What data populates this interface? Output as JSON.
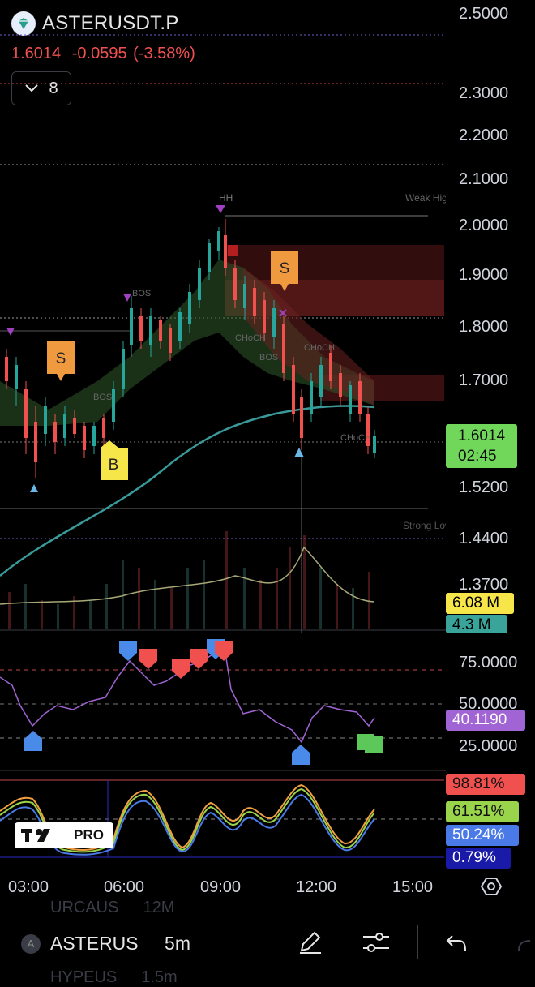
{
  "header": {
    "symbol": "ASTERUSDT.P",
    "last_price": "1.6014",
    "change": "-0.0595",
    "change_pct": "(-3.58%)",
    "indicator_count": "8"
  },
  "price_scale": [
    "2.5000",
    "2.3000",
    "2.2000",
    "2.1000",
    "2.0000",
    "1.9000",
    "1.8000",
    "1.7000",
    "1.5200",
    "1.4400",
    "1.3700"
  ],
  "price_badge": {
    "price": "1.6014",
    "countdown": "02:45"
  },
  "volume_badges": [
    "6.08 M",
    "4.3 M"
  ],
  "chart_labels": {
    "hh": "HH",
    "weak_high": "Weak High",
    "strong_low": "Strong Low",
    "bos": "BOS",
    "choch": "CHoCH",
    "buy": "B",
    "sell": "S"
  },
  "rsi": {
    "scale": [
      "75.0000",
      "50.0000",
      "25.0000"
    ],
    "badge": "40.1190"
  },
  "stoch": {
    "badges": [
      "98.81%",
      "61.51%",
      "50.24%",
      "0.79%"
    ]
  },
  "time_axis": [
    "03:00",
    "06:00",
    "09:00",
    "12:00",
    "15:00"
  ],
  "bottom_bar": {
    "rows": [
      {
        "symbol": "URCAUS",
        "value": "12M"
      },
      {
        "symbol": "ASTERUS",
        "value": "5m"
      },
      {
        "symbol": "HYPEUS",
        "value": "1.5m"
      }
    ]
  },
  "watermark": "PRO",
  "colors": {
    "down": "#f0514f",
    "up": "#26a69a",
    "rsi": "#a064d4",
    "badge_green": "#71d75a",
    "badge_yellow": "#f7e64a"
  }
}
